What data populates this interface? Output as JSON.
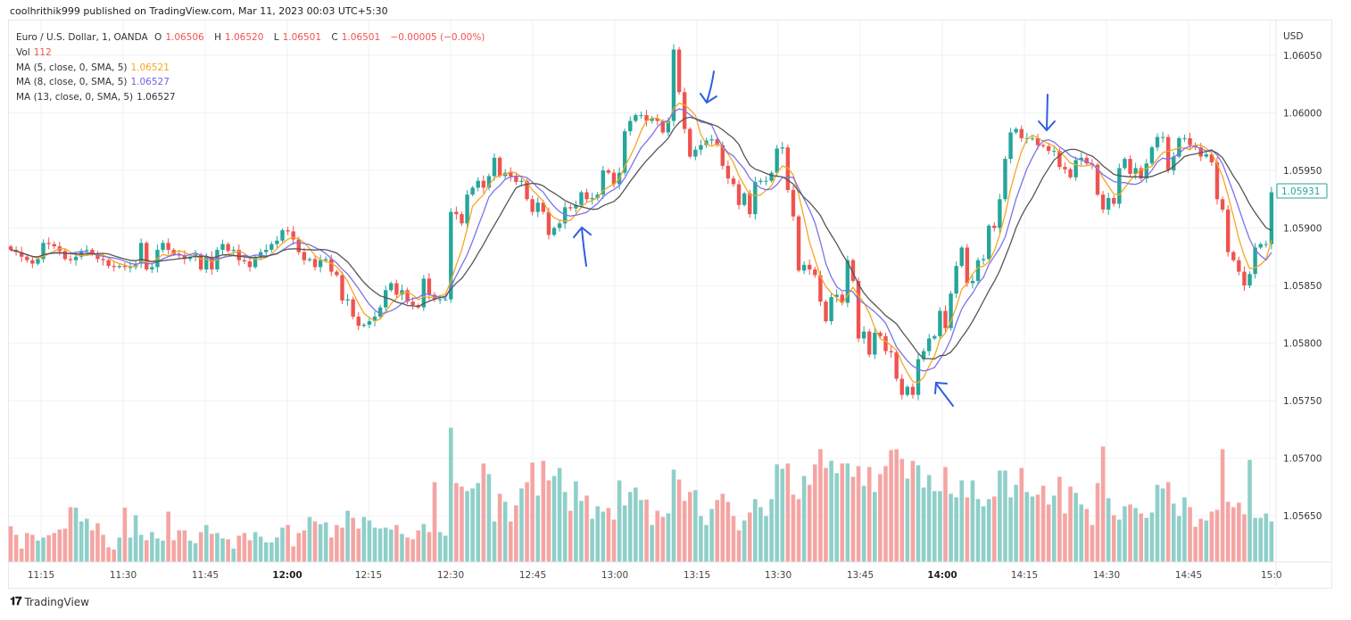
{
  "header": {
    "publisher_line": "coolhrithik999 published on TradingView.com, Mar 11, 2023 00:03 UTC+5:30"
  },
  "legend": {
    "symbol": "Euro / U.S. Dollar, 1, OANDA",
    "open_label": "O",
    "open": "1.06506",
    "high_label": "H",
    "high": "1.06520",
    "low_label": "L",
    "low": "1.06501",
    "close_label": "C",
    "close": "1.06501",
    "change": "−0.00005 (−0.00%)",
    "vol_label": "Vol",
    "vol": "112",
    "ma": [
      {
        "label": "MA (5, close, 0, SMA, 5)",
        "value": "1.06521",
        "color": "#f5a623",
        "period": 5
      },
      {
        "label": "MA (8, close, 0, SMA, 5)",
        "value": "1.06527",
        "color": "#7b74e6",
        "period": 8
      },
      {
        "label": "MA (13, close, 0, SMA, 5)",
        "value": "1.06527",
        "color": "#555555",
        "period": 13
      }
    ]
  },
  "footer": {
    "logo_text": "TradingView",
    "logo_mark": "17"
  },
  "colors": {
    "up": "#26a69a",
    "down": "#ef5350",
    "up_volume": "#8fcfc9",
    "down_volume": "#f4a5a3",
    "annotation": "#2f5fe0"
  },
  "chart_data": {
    "type": "candlestick",
    "symbol": "EURUSD",
    "interval": "1 minute",
    "currency": "USD",
    "ylim": [
      1.05605,
      1.06068
    ],
    "y_ticks": [
      "1.06050",
      "1.06000",
      "1.05950",
      "1.05900",
      "1.05850",
      "1.05800",
      "1.05750",
      "1.05700",
      "1.05650"
    ],
    "x_ticks": [
      {
        "label": "11:15",
        "bold": false
      },
      {
        "label": "11:30",
        "bold": false
      },
      {
        "label": "11:45",
        "bold": false
      },
      {
        "label": "12:00",
        "bold": true
      },
      {
        "label": "12:15",
        "bold": false
      },
      {
        "label": "12:30",
        "bold": false
      },
      {
        "label": "12:45",
        "bold": false
      },
      {
        "label": "13:00",
        "bold": false
      },
      {
        "label": "13:15",
        "bold": false
      },
      {
        "label": "13:30",
        "bold": false
      },
      {
        "label": "13:45",
        "bold": false
      },
      {
        "label": "14:00",
        "bold": true
      },
      {
        "label": "14:15",
        "bold": false
      },
      {
        "label": "14:30",
        "bold": false
      },
      {
        "label": "14:45",
        "bold": false
      },
      {
        "label": "15:0",
        "bold": false
      }
    ],
    "last_price": "1.05931",
    "grid": true,
    "closes": [
      1.05881,
      1.05879,
      1.05875,
      1.05872,
      1.05869,
      1.05873,
      1.05887,
      1.05886,
      1.05884,
      1.0588,
      1.05873,
      1.05872,
      1.05875,
      1.0588,
      1.05881,
      1.05877,
      1.05873,
      1.05872,
      1.05867,
      1.05866,
      1.05867,
      1.05866,
      1.05866,
      1.05869,
      1.05887,
      1.05864,
      1.05866,
      1.05881,
      1.05887,
      1.05881,
      1.05877,
      1.05876,
      1.05873,
      1.05875,
      1.05877,
      1.05864,
      1.05875,
      1.05864,
      1.05881,
      1.05886,
      1.0588,
      1.05881,
      1.05872,
      1.05871,
      1.05866,
      1.05875,
      1.05879,
      1.05881,
      1.05886,
      1.05889,
      1.05898,
      1.05897,
      1.0589,
      1.05879,
      1.05872,
      1.05873,
      1.05866,
      1.05872,
      1.05873,
      1.05862,
      1.05859,
      1.05837,
      1.05838,
      1.05823,
      1.05815,
      1.05816,
      1.05819,
      1.05823,
      1.05831,
      1.05846,
      1.05852,
      1.05842,
      1.05846,
      1.05836,
      1.05833,
      1.05831,
      1.05856,
      1.05842,
      1.05838,
      1.05838,
      1.05838,
      1.05914,
      1.05912,
      1.05904,
      1.05929,
      1.05935,
      1.05941,
      1.05935,
      1.05945,
      1.05961,
      1.05945,
      1.05948,
      1.05945,
      1.0594,
      1.05941,
      1.05925,
      1.05914,
      1.05922,
      1.05914,
      1.05894,
      1.059,
      1.05904,
      1.05918,
      1.05917,
      1.0592,
      1.05931,
      1.05925,
      1.05926,
      1.05929,
      1.0595,
      1.05948,
      1.05938,
      1.05948,
      1.05984,
      1.05993,
      1.05998,
      1.05998,
      1.05993,
      1.05995,
      1.05993,
      1.05983,
      1.05993,
      1.06055,
      1.06018,
      1.05986,
      1.05962,
      1.05968,
      1.05972,
      1.05976,
      1.05977,
      1.05972,
      1.05954,
      1.05943,
      1.05938,
      1.0592,
      1.0593,
      1.05912,
      1.0594,
      1.05941,
      1.05941,
      1.05948,
      1.05969,
      1.0597,
      1.05933,
      1.0591,
      1.05863,
      1.05868,
      1.05864,
      1.05859,
      1.05836,
      1.05819,
      1.0584,
      1.05842,
      1.05835,
      1.05872,
      1.05854,
      1.05804,
      1.0581,
      1.0579,
      1.05809,
      1.05806,
      1.05793,
      1.05792,
      1.05769,
      1.05755,
      1.05762,
      1.05755,
      1.05786,
      1.05793,
      1.05804,
      1.05806,
      1.05828,
      1.05813,
      1.05843,
      1.05867,
      1.05883,
      1.05852,
      1.05854,
      1.05872,
      1.05873,
      1.05902,
      1.059,
      1.05925,
      1.0596,
      1.05983,
      1.05986,
      1.05978,
      1.05978,
      1.05978,
      1.05972,
      1.05971,
      1.05967,
      1.05967,
      1.05953,
      1.05951,
      1.05944,
      1.05959,
      1.05961,
      1.05956,
      1.05955,
      1.05929,
      1.05916,
      1.05926,
      1.05921,
      1.05952,
      1.0596,
      1.05947,
      1.05952,
      1.05943,
      1.05956,
      1.0597,
      1.05979,
      1.05979,
      1.0595,
      1.05962,
      1.05978,
      1.05978,
      1.05972,
      1.0597,
      1.05962,
      1.05964,
      1.05957,
      1.05925,
      1.05916,
      1.05879,
      1.05872,
      1.05862,
      1.0585,
      1.0586,
      1.05883,
      1.05886,
      1.05886,
      1.05931
    ],
    "volumes": [
      80,
      61,
      30,
      65,
      61,
      48,
      55,
      60,
      65,
      73,
      75,
      123,
      122,
      91,
      97,
      71,
      87,
      61,
      33,
      28,
      55,
      122,
      55,
      105,
      61,
      49,
      67,
      53,
      48,
      113,
      49,
      71,
      71,
      48,
      42,
      67,
      83,
      63,
      65,
      53,
      51,
      30,
      59,
      65,
      49,
      67,
      57,
      44,
      44,
      55,
      77,
      83,
      35,
      65,
      71,
      101,
      91,
      85,
      89,
      55,
      83,
      77,
      115,
      99,
      75,
      101,
      93,
      77,
      75,
      77,
      73,
      83,
      63,
      55,
      51,
      71,
      85,
      67,
      179,
      67,
      59,
      301,
      177,
      169,
      159,
      165,
      177,
      221,
      197,
      91,
      153,
      135,
      91,
      127,
      165,
      179,
      223,
      149,
      227,
      183,
      193,
      211,
      157,
      115,
      181,
      137,
      149,
      97,
      125,
      113,
      121,
      95,
      183,
      127,
      157,
      167,
      139,
      140,
      83,
      115,
      101,
      109,
      207,
      185,
      137,
      157,
      161,
      103,
      83,
      119,
      139,
      153,
      135,
      103,
      71,
      93,
      111,
      141,
      123,
      103,
      141,
      219,
      209,
      221,
      151,
      141,
      193,
      173,
      219,
      253,
      211,
      227,
      199,
      221,
      221,
      191,
      215,
      171,
      213,
      157,
      197,
      215,
      251,
      253,
      231,
      187,
      227,
      217,
      167,
      195,
      159,
      159,
      213,
      153,
      145,
      183,
      145,
      183,
      141,
      125,
      141,
      147,
      205,
      205,
      145,
      173,
      211,
      157,
      147,
      151,
      171,
      129,
      149,
      191,
      109,
      169,
      155,
      129,
      119,
      83,
      177,
      259,
      143,
      105,
      95,
      125,
      129,
      121,
      109,
      99,
      111,
      173,
      165,
      179,
      131,
      103,
      145,
      123,
      79,
      97,
      93,
      113,
      117,
      253,
      135,
      123,
      133,
      107,
      229,
      99,
      99,
      109,
      91
    ]
  }
}
